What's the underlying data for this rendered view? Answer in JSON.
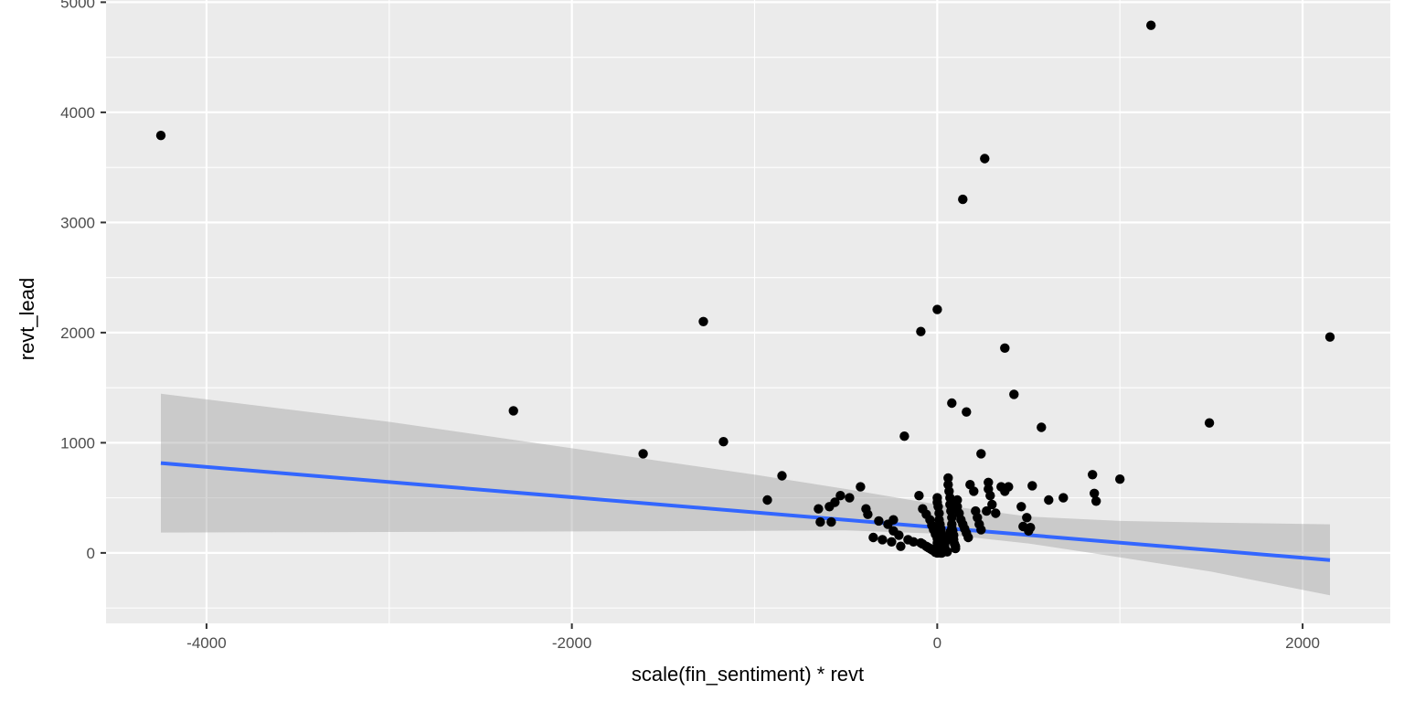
{
  "chart_data": {
    "type": "scatter",
    "title": "",
    "xlabel": "scale(fin_sentiment) * revt",
    "ylabel": "revt_lead",
    "xlim": [
      -4550,
      2480
    ],
    "ylim": [
      -640,
      5020
    ],
    "x_ticks": [
      -4000,
      -2000,
      0,
      2000
    ],
    "x_tick_labels": [
      "-4000",
      "-2000",
      "0",
      "2000"
    ],
    "y_ticks": [
      0,
      1000,
      2000,
      3000,
      4000,
      5000
    ],
    "y_tick_labels": [
      "0",
      "1000",
      "2000",
      "3000",
      "4000",
      "5000"
    ],
    "grid": true,
    "colors": {
      "panel": "#ebebeb",
      "grid": "#ffffff",
      "points": "#000000",
      "line": "#3366ff",
      "ribbon": "#999999"
    },
    "points": {
      "x": [
        -4250,
        1170,
        260,
        140,
        -1280,
        -2320,
        -1610,
        -1170,
        -850,
        -930,
        0,
        -90,
        370,
        420,
        2150,
        1490,
        570,
        80,
        160,
        -180,
        240,
        850,
        1000,
        860,
        870,
        520,
        690,
        610,
        460,
        490,
        -420,
        -530,
        -480,
        -560,
        -590,
        -650,
        -640,
        -580,
        -390,
        -380,
        -320,
        -270,
        -240,
        -240,
        -210,
        -160,
        -130,
        -90,
        -80,
        -60,
        -50,
        -40,
        -30,
        -20,
        -10,
        -5,
        0,
        0,
        5,
        10,
        10,
        15,
        20,
        20,
        25,
        30,
        30,
        35,
        40,
        40,
        45,
        50,
        55,
        60,
        60,
        65,
        70,
        70,
        75,
        80,
        80,
        85,
        90,
        90,
        95,
        100,
        100,
        110,
        110,
        120,
        130,
        140,
        150,
        160,
        170,
        180,
        200,
        210,
        220,
        230,
        240,
        270,
        280,
        280,
        290,
        300,
        320,
        350,
        370,
        390,
        470,
        500,
        510,
        -100,
        -80,
        -60,
        -40,
        -30,
        -20,
        -10,
        0,
        0,
        10,
        20,
        30,
        40,
        50,
        60,
        70,
        80,
        20,
        -10,
        40,
        0,
        25,
        5,
        -15,
        -250,
        -200,
        -350,
        -300,
        30
      ],
      "y": [
        3790,
        4790,
        3580,
        3210,
        2100,
        1290,
        900,
        1010,
        700,
        480,
        2210,
        2010,
        1860,
        1440,
        1960,
        1180,
        1140,
        1360,
        1280,
        1060,
        900,
        710,
        670,
        540,
        470,
        610,
        500,
        480,
        420,
        320,
        600,
        520,
        500,
        460,
        420,
        400,
        280,
        280,
        400,
        350,
        290,
        260,
        300,
        200,
        160,
        120,
        100,
        90,
        80,
        60,
        50,
        40,
        30,
        20,
        10,
        20,
        500,
        460,
        420,
        360,
        300,
        260,
        220,
        180,
        150,
        120,
        100,
        80,
        60,
        40,
        30,
        20,
        10,
        680,
        620,
        560,
        500,
        440,
        380,
        320,
        260,
        200,
        160,
        120,
        80,
        60,
        40,
        480,
        420,
        360,
        300,
        260,
        220,
        180,
        140,
        620,
        560,
        380,
        320,
        260,
        210,
        380,
        640,
        580,
        520,
        440,
        360,
        600,
        560,
        600,
        240,
        200,
        230,
        520,
        400,
        350,
        300,
        250,
        210,
        170,
        130,
        90,
        70,
        30,
        10,
        70,
        110,
        150,
        190,
        230,
        0,
        5,
        15,
        0,
        0,
        40,
        30,
        100,
        60,
        140,
        120,
        10
      ],
      "color": "#000000"
    },
    "fit_line": {
      "x": [
        -4250,
        2150
      ],
      "y": [
        815,
        -65
      ],
      "color": "#3366ff"
    },
    "confidence_band": {
      "x": [
        -4250,
        -3000,
        -2000,
        -1000,
        -500,
        0,
        500,
        1000,
        1500,
        2150
      ],
      "lower": [
        185,
        190,
        195,
        200,
        205,
        175,
        85,
        -40,
        -170,
        -385
      ],
      "upper": [
        1445,
        1190,
        950,
        710,
        580,
        440,
        330,
        290,
        275,
        260
      ]
    }
  }
}
